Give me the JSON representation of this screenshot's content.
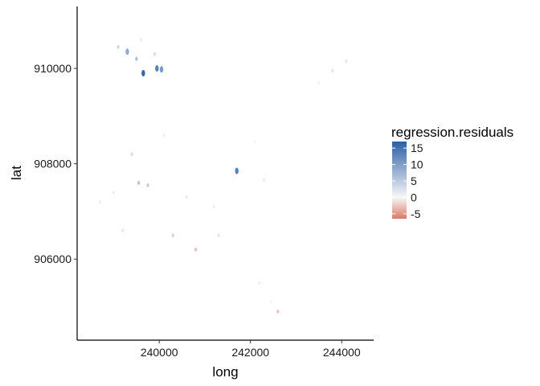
{
  "chart_data": {
    "type": "scatter",
    "title": "",
    "xlabel": "long",
    "ylabel": "lat",
    "xlim": [
      238200,
      244700
    ],
    "ylim": [
      904300,
      911300
    ],
    "x_ticks": [
      240000,
      242000,
      244000
    ],
    "x_tick_labels": [
      "240000",
      "242000",
      "244000"
    ],
    "y_ticks": [
      906000,
      908000,
      910000
    ],
    "y_tick_labels": [
      "906000",
      "908000",
      "910000"
    ],
    "grid": false,
    "legend": {
      "title": "regression.residuals",
      "placement": "right",
      "min": -6.5,
      "max": 17,
      "breaks": [
        15,
        10,
        5,
        0,
        -5
      ],
      "break_labels": [
        "15",
        "10",
        "5",
        "0",
        "-5"
      ],
      "low_color": "#d97b66",
      "mid_color": "#f7f7f7",
      "high_color": "#2c5fa6"
    },
    "series": [
      {
        "points": [
          {
            "x": 239650,
            "y": 909900,
            "v": 17
          },
          {
            "x": 239950,
            "y": 910000,
            "v": 14
          },
          {
            "x": 240050,
            "y": 909980,
            "v": 11
          },
          {
            "x": 239300,
            "y": 910350,
            "v": 9
          },
          {
            "x": 239500,
            "y": 910200,
            "v": 7
          },
          {
            "x": 239100,
            "y": 910450,
            "v": 4
          },
          {
            "x": 239900,
            "y": 910300,
            "v": 3
          },
          {
            "x": 239600,
            "y": 910600,
            "v": 2
          },
          {
            "x": 241700,
            "y": 907850,
            "v": 14
          },
          {
            "x": 239550,
            "y": 907600,
            "v": 6
          },
          {
            "x": 239750,
            "y": 907550,
            "v": 5
          },
          {
            "x": 240300,
            "y": 906500,
            "v": 4
          },
          {
            "x": 239400,
            "y": 908200,
            "v": 3
          },
          {
            "x": 239000,
            "y": 907400,
            "v": 2
          },
          {
            "x": 240600,
            "y": 907300,
            "v": 2
          },
          {
            "x": 241200,
            "y": 907100,
            "v": 2
          },
          {
            "x": 242300,
            "y": 907650,
            "v": 2
          },
          {
            "x": 242100,
            "y": 908450,
            "v": 1
          },
          {
            "x": 243500,
            "y": 909700,
            "v": 1
          },
          {
            "x": 242450,
            "y": 905100,
            "v": 1
          },
          {
            "x": 242600,
            "y": 904900,
            "v": -3
          },
          {
            "x": 243800,
            "y": 909950,
            "v": -2
          },
          {
            "x": 244100,
            "y": 910150,
            "v": -2
          },
          {
            "x": 240800,
            "y": 906200,
            "v": -3
          },
          {
            "x": 239200,
            "y": 906600,
            "v": -2
          },
          {
            "x": 238700,
            "y": 907200,
            "v": -1
          },
          {
            "x": 240100,
            "y": 908600,
            "v": -1
          },
          {
            "x": 241300,
            "y": 906500,
            "v": -2
          },
          {
            "x": 242200,
            "y": 905500,
            "v": -1
          }
        ]
      }
    ]
  }
}
